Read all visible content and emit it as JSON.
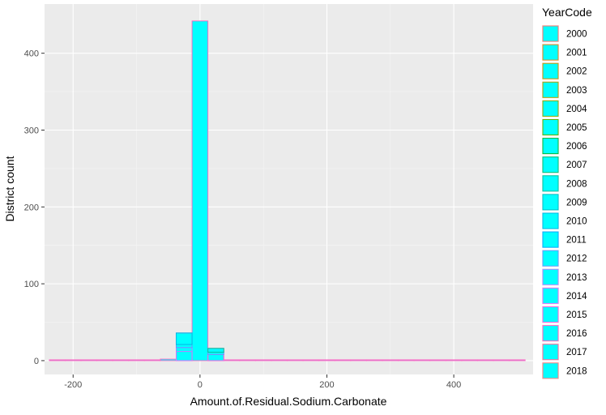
{
  "chart_data": {
    "type": "bar",
    "subtype": "stacked-histogram",
    "xlabel": "Amount.of.Residual.Sodium.Carbonate",
    "ylabel": "District count",
    "xlim": [
      -245,
      525
    ],
    "ylim": [
      -18,
      464
    ],
    "x_ticks": [
      -200,
      0,
      200,
      400
    ],
    "x_tick_labels": [
      "-200",
      "0",
      "200",
      "400"
    ],
    "y_ticks": [
      0,
      100,
      200,
      300,
      400
    ],
    "y_tick_labels": [
      "0",
      "100",
      "200",
      "300",
      "400"
    ],
    "grid": true,
    "bin_width": 25,
    "fill_color": "#00ffff",
    "legend": {
      "title": "YearCode",
      "placement": "right",
      "items": [
        {
          "label": "2000",
          "color": "#f8766d"
        },
        {
          "label": "2001",
          "color": "#e7861b"
        },
        {
          "label": "2002",
          "color": "#d19300"
        },
        {
          "label": "2003",
          "color": "#b59f00"
        },
        {
          "label": "2004",
          "color": "#93aa00"
        },
        {
          "label": "2005",
          "color": "#5eb300"
        },
        {
          "label": "2006",
          "color": "#00ba38"
        },
        {
          "label": "2007",
          "color": "#00bf74"
        },
        {
          "label": "2008",
          "color": "#00c19f"
        },
        {
          "label": "2009",
          "color": "#00bfc4"
        },
        {
          "label": "2010",
          "color": "#00b8e7"
        },
        {
          "label": "2011",
          "color": "#00a9ff"
        },
        {
          "label": "2012",
          "color": "#619cff"
        },
        {
          "label": "2013",
          "color": "#ae87ff"
        },
        {
          "label": "2014",
          "color": "#db72fb"
        },
        {
          "label": "2015",
          "color": "#f564e3"
        },
        {
          "label": "2016",
          "color": "#ff61c3"
        },
        {
          "label": "2017",
          "color": "#ff699c"
        },
        {
          "label": "2018",
          "color": "#ff7f7f"
        }
      ]
    },
    "bins": [
      {
        "x0": -237.5,
        "x1": -212.5,
        "count": 1
      },
      {
        "x0": -212.5,
        "x1": -187.5,
        "count": 0
      },
      {
        "x0": -187.5,
        "x1": -162.5,
        "count": 0
      },
      {
        "x0": -162.5,
        "x1": -137.5,
        "count": 1
      },
      {
        "x0": -137.5,
        "x1": -112.5,
        "count": 0
      },
      {
        "x0": -112.5,
        "x1": -87.5,
        "count": 0
      },
      {
        "x0": -87.5,
        "x1": -62.5,
        "count": 1
      },
      {
        "x0": -62.5,
        "x1": -37.5,
        "count": 2
      },
      {
        "x0": -37.5,
        "x1": -12.5,
        "count": 36
      },
      {
        "x0": -12.5,
        "x1": 12.5,
        "count": 442
      },
      {
        "x0": 12.5,
        "x1": 37.5,
        "count": 16
      },
      {
        "x0": 37.5,
        "x1": 62.5,
        "count": 1
      },
      {
        "x0": 62.5,
        "x1": 87.5,
        "count": 0
      },
      {
        "x0": 87.5,
        "x1": 112.5,
        "count": 0
      },
      {
        "x0": 112.5,
        "x1": 137.5,
        "count": 0
      },
      {
        "x0": 137.5,
        "x1": 162.5,
        "count": 0
      },
      {
        "x0": 162.5,
        "x1": 187.5,
        "count": 0
      },
      {
        "x0": 187.5,
        "x1": 212.5,
        "count": 0
      },
      {
        "x0": 212.5,
        "x1": 237.5,
        "count": 0
      },
      {
        "x0": 237.5,
        "x1": 262.5,
        "count": 1
      },
      {
        "x0": 262.5,
        "x1": 287.5,
        "count": 0
      },
      {
        "x0": 287.5,
        "x1": 312.5,
        "count": 0
      },
      {
        "x0": 312.5,
        "x1": 337.5,
        "count": 0
      },
      {
        "x0": 337.5,
        "x1": 362.5,
        "count": 0
      },
      {
        "x0": 362.5,
        "x1": 387.5,
        "count": 0
      },
      {
        "x0": 387.5,
        "x1": 412.5,
        "count": 0
      },
      {
        "x0": 412.5,
        "x1": 437.5,
        "count": 0
      },
      {
        "x0": 437.5,
        "x1": 462.5,
        "count": 0
      },
      {
        "x0": 462.5,
        "x1": 487.5,
        "count": 0
      },
      {
        "x0": 487.5,
        "x1": 512.5,
        "count": 1
      }
    ],
    "stack_segments": [
      {
        "x0": -37.5,
        "x1": -12.5,
        "y0": 0,
        "y1": 12,
        "color": "#db72fb"
      },
      {
        "x0": -37.5,
        "x1": -12.5,
        "y0": 12,
        "y1": 17,
        "color": "#ae87ff"
      },
      {
        "x0": -37.5,
        "x1": -12.5,
        "y0": 17,
        "y1": 21,
        "color": "#619cff"
      },
      {
        "x0": -37.5,
        "x1": -12.5,
        "y0": 21,
        "y1": 36,
        "color": "#00b8e7"
      },
      {
        "x0": 12.5,
        "x1": 37.5,
        "y0": 0,
        "y1": 8,
        "color": "#f564e3"
      },
      {
        "x0": 12.5,
        "x1": 37.5,
        "y0": 8,
        "y1": 11,
        "color": "#619cff"
      },
      {
        "x0": 12.5,
        "x1": 37.5,
        "y0": 11,
        "y1": 16,
        "color": "#00c19f"
      }
    ]
  }
}
